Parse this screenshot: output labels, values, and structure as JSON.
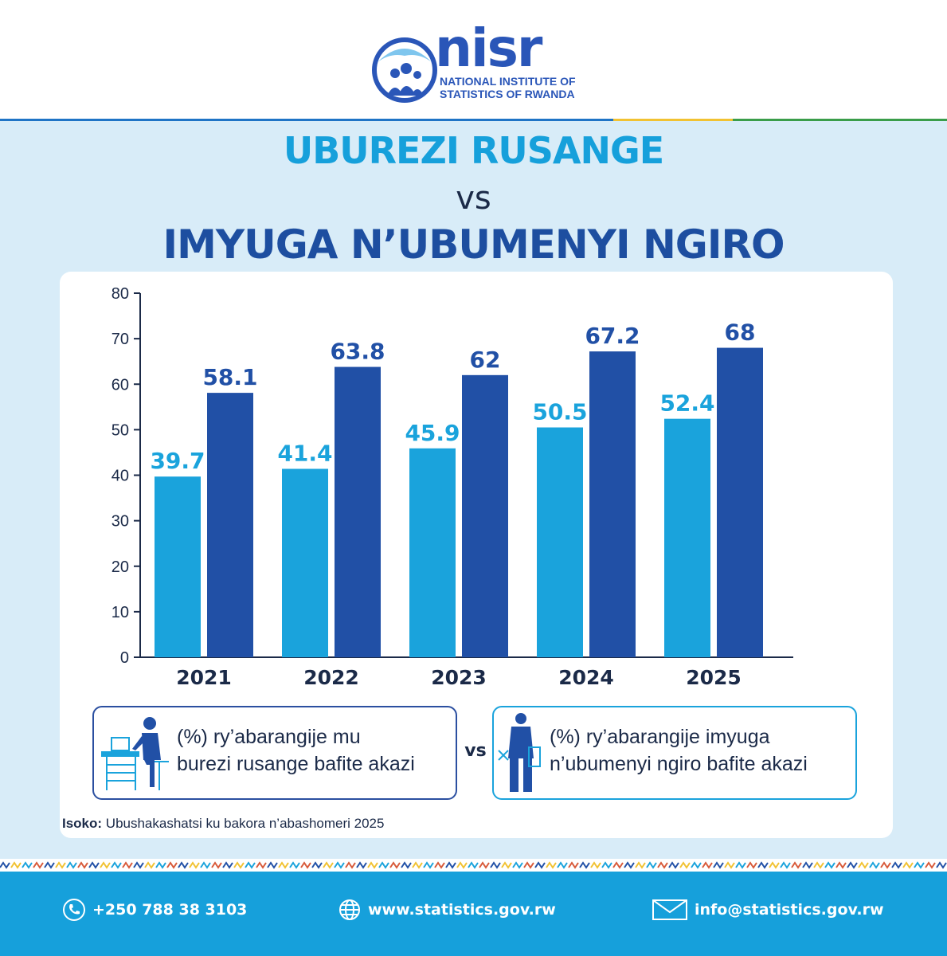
{
  "header": {
    "logo_word": "nisr",
    "logo_line1": "NATIONAL INSTITUTE OF",
    "logo_line2": "STATISTICS OF RWANDA"
  },
  "titles": {
    "line1": "UBUREZI RUSANGE",
    "vs": "VS",
    "line2": "IMYUGA N’UBUMENYI NGIRO"
  },
  "legend": {
    "left_line1": "(%) ry’abarangije mu",
    "left_line2": "burezi rusange bafite akazi",
    "vs": "vs",
    "right_line1": "(%) ry’abarangije imyuga",
    "right_line2": "n’ubumenyi ngiro bafite akazi"
  },
  "source": {
    "label": "Isoko:",
    "text": " Ubushakashatsi ku bakora n’abashomeri 2025"
  },
  "footer": {
    "phone": "+250 788 38 3103",
    "website": "www.statistics.gov.rw",
    "email": "info@statistics.gov.rw",
    "phone_icon": "phone-icon",
    "website_icon": "globe-icon",
    "email_icon": "envelope-icon"
  },
  "colors": {
    "general_bar": "#1aa3dc",
    "tvet_bar": "#2150a6",
    "axis": "#1b2a48"
  },
  "chart_data": {
    "type": "bar",
    "categories": [
      "2021",
      "2022",
      "2023",
      "2024",
      "2025"
    ],
    "series": [
      {
        "values": [
          39.7,
          41.4,
          45.9,
          50.5,
          52.4
        ],
        "labels": [
          "39.7",
          "41.4",
          "45.9",
          "50.5",
          "52.4"
        ],
        "color": "#1aa3dc"
      },
      {
        "values": [
          58.1,
          63.8,
          62,
          67.2,
          68
        ],
        "labels": [
          "58.1",
          "63.8",
          "62",
          "67.2",
          "68"
        ],
        "color": "#2150a6"
      }
    ],
    "yticks": [
      "0",
      "10",
      "20",
      "30",
      "40",
      "50",
      "60",
      "70",
      "80"
    ],
    "ylim": [
      0,
      80
    ],
    "grid": false,
    "legend_placement": "bottom"
  }
}
